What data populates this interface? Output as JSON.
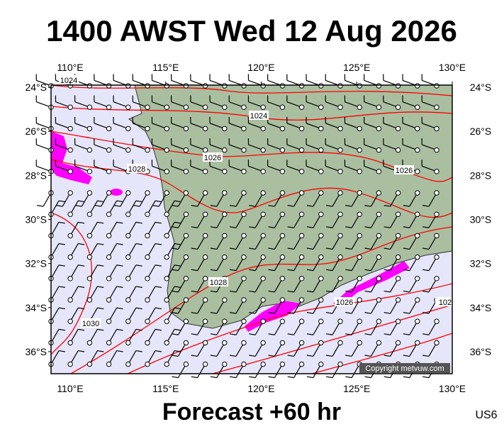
{
  "title": "1400 AWST Wed 12 Aug 2026",
  "footer": "Forecast +60 hr",
  "code": "US6",
  "copyright": "Copyright metvuw.com",
  "map": {
    "xlim": [
      109,
      130
    ],
    "ylim": [
      -37,
      -23.9
    ],
    "xticks": [
      {
        "value": 110,
        "label": "110°E"
      },
      {
        "value": 115,
        "label": "115°E"
      },
      {
        "value": 120,
        "label": "120°E"
      },
      {
        "value": 125,
        "label": "125°E"
      },
      {
        "value": 130,
        "label": "130°E"
      }
    ],
    "yticks": [
      {
        "value": -24,
        "label": "24°S"
      },
      {
        "value": -26,
        "label": "26°S"
      },
      {
        "value": -28,
        "label": "28°S"
      },
      {
        "value": -30,
        "label": "30°S"
      },
      {
        "value": -32,
        "label": "32°S"
      },
      {
        "value": -34,
        "label": "34°S"
      },
      {
        "value": -36,
        "label": "36°S"
      }
    ],
    "isobar_labels": [
      "1024",
      "1024",
      "1026",
      "1028",
      "1026",
      "1028",
      "1026",
      "1030",
      "102"
    ]
  }
}
